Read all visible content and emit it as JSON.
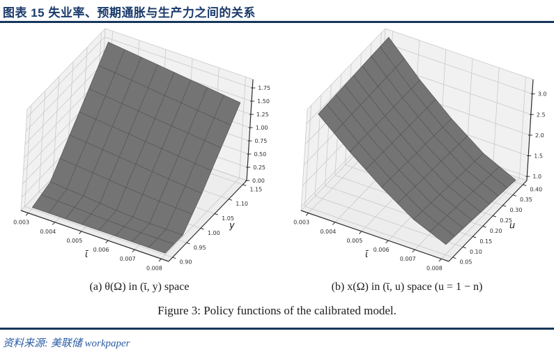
{
  "header": {
    "title": "图表 15  失业率、预期通胀与生产力之间的关系",
    "accent_color": "#16365c"
  },
  "figure": {
    "subcaption_a": "(a) θ(Ω) in (ῑ, y) space",
    "subcaption_b": "(b) x(Ω) in (ῑ, u) space (u = 1 − n)",
    "caption": "Figure 3: Policy functions of the calibrated model."
  },
  "footer": {
    "source": "资料来源: 美联储 workpaper",
    "text_color": "#2a5da4"
  },
  "chart_data": [
    {
      "type": "surface3d",
      "id": "plot-a",
      "title": "theta(Omega) policy function",
      "xlabel": "ῑ",
      "ylabel": "y",
      "x_ticks": [
        "0.003",
        "0.004",
        "0.005",
        "0.006",
        "0.007",
        "0.008"
      ],
      "y_ticks": [
        "0.90",
        "0.95",
        "1.00",
        "1.05",
        "1.10",
        "1.15"
      ],
      "z_ticks": [
        "0.00",
        "0.25",
        "0.50",
        "0.75",
        "1.00",
        "1.25",
        "1.50",
        "1.75"
      ],
      "z_range": [
        0,
        1.91
      ],
      "x_values": [
        0.003,
        0.00425,
        0.0055,
        0.00675,
        0.008
      ],
      "y_values": [
        0.9,
        0.9625,
        1.025,
        1.0875,
        1.15
      ],
      "z_grid": [
        [
          0.03,
          0.17,
          0.71,
          1.24,
          1.78
        ],
        [
          0.03,
          0.12,
          0.65,
          1.18,
          1.71
        ],
        [
          0.03,
          0.06,
          0.59,
          1.11,
          1.64
        ],
        [
          0.03,
          0.03,
          0.53,
          1.05,
          1.57
        ],
        [
          0.03,
          0.03,
          0.47,
          0.99,
          1.5
        ]
      ],
      "surface_color": "#747474",
      "mesh_color": "#565656",
      "pane_color": "#f1f1f2",
      "grid_color": "#c9c9cb",
      "grid_on": true,
      "legend": "none"
    },
    {
      "type": "surface3d",
      "id": "plot-b",
      "title": "x(Omega) policy function",
      "xlabel": "ῑ",
      "ylabel": "u",
      "x_ticks": [
        "0.003",
        "0.004",
        "0.005",
        "0.006",
        "0.007",
        "0.008"
      ],
      "y_ticks": [
        "0.05",
        "0.10",
        "0.15",
        "0.20",
        "0.25",
        "0.30",
        "0.35",
        "0.40"
      ],
      "z_ticks": [
        "1.0",
        "1.5",
        "2.0",
        "2.5",
        "3.0"
      ],
      "z_range": [
        0.9,
        3.35
      ],
      "x_values": [
        0.003,
        0.00425,
        0.0055,
        0.00675,
        0.008
      ],
      "y_values": [
        0.05,
        0.1375,
        0.225,
        0.3125,
        0.4
      ],
      "z_grid": [
        [
          3.2,
          3.23,
          3.25,
          3.28,
          3.3
        ],
        [
          2.56,
          2.56,
          2.55,
          2.55,
          2.54
        ],
        [
          1.98,
          1.96,
          1.93,
          1.91,
          1.88
        ],
        [
          1.48,
          1.44,
          1.4,
          1.36,
          1.32
        ],
        [
          1.15,
          1.1,
          1.05,
          1.0,
          0.95
        ]
      ],
      "surface_color": "#747474",
      "mesh_color": "#565656",
      "pane_color": "#f1f1f2",
      "grid_color": "#c9c9cb",
      "grid_on": true,
      "legend": "none"
    }
  ]
}
